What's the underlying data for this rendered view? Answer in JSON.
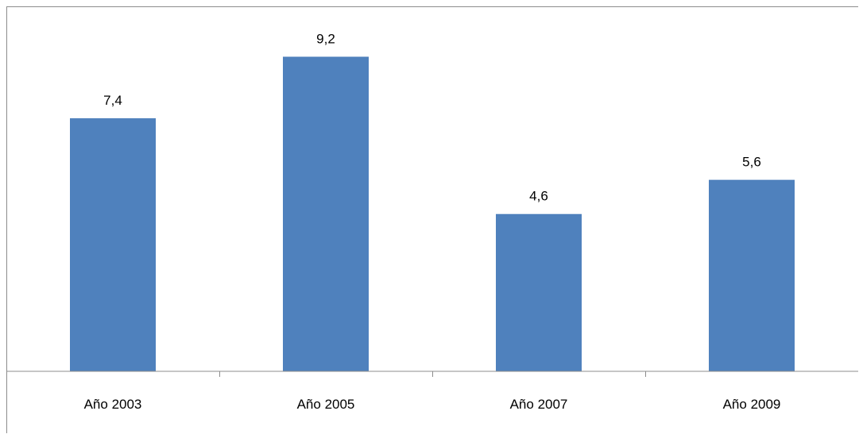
{
  "chart_data": {
    "type": "bar",
    "categories": [
      "Año 2003",
      "Año 2005",
      "Año 2007",
      "Año 2009"
    ],
    "values": [
      7.4,
      9.2,
      4.6,
      5.6
    ],
    "data_labels": [
      "7,4",
      "9,2",
      "4,6",
      "5,6"
    ],
    "title": "",
    "xlabel": "",
    "ylabel": "",
    "ylim": [
      0,
      10
    ],
    "grid": false,
    "legend": "none",
    "bar_color": "#4f81bd",
    "axis_color": "#8c8c8c"
  }
}
